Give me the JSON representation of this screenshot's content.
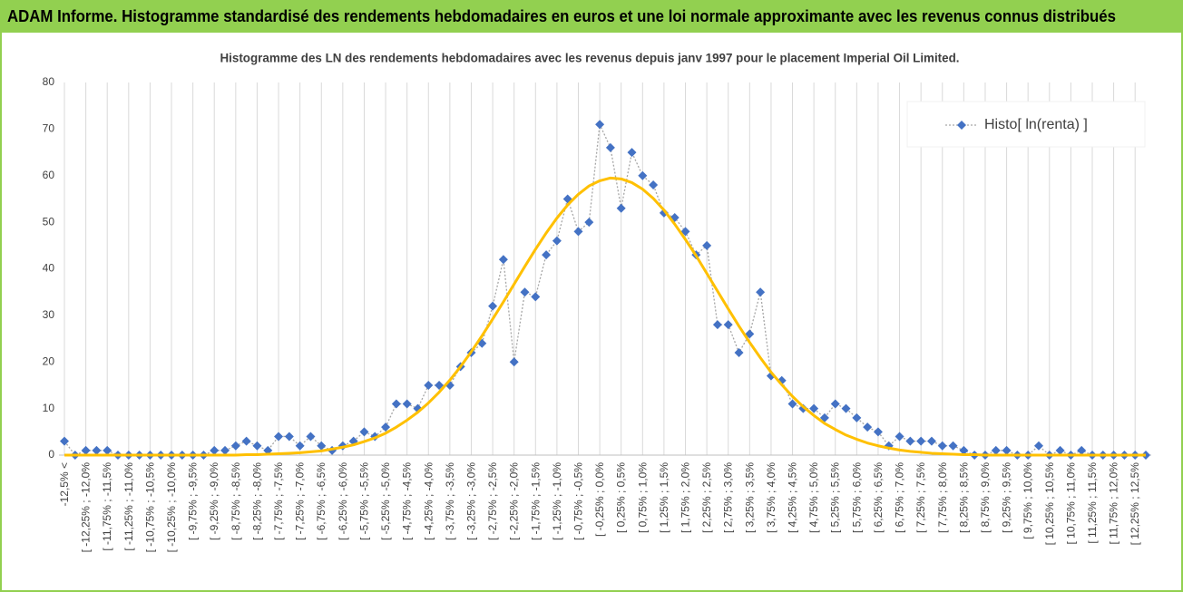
{
  "header": {
    "title": "ADAM Informe. Histogramme standardisé des rendements hebdomadaires en euros et une loi normale approximante avec les revenus connus distribués"
  },
  "chart_data": {
    "type": "line",
    "title": "Histogramme des LN des rendements hebdomadaires avec les revenus depuis janv 1997 pour le placement Imperial Oil Limited.",
    "categories": [
      "-12,5% <",
      null,
      "[ -12,25% ; -12,0%",
      null,
      "[ -11,75% ; -11,5%",
      null,
      "[ -11,25% ; -11,0%",
      null,
      "[ -10,75% ; -10,5%",
      null,
      "[ -10,25% ; -10,0%",
      null,
      "[ -9,75% ; -9,5%",
      null,
      "[ -9,25% ; -9,0%",
      null,
      "[ -8,75% ; -8,5%",
      null,
      "[ -8,25% ; -8,0%",
      null,
      "[ -7,75% ; -7,5%",
      null,
      "[ -7,25% ; -7,0%",
      null,
      "[ -6,75% ; -6,5%",
      null,
      "[ -6,25% ; -6,0%",
      null,
      "[ -5,75% ; -5,5%",
      null,
      "[ -5,25% ; -5,0%",
      null,
      "[ -4,75% ; -4,5%",
      null,
      "[ -4,25% ; -4,0%",
      null,
      "[ -3,75% ; -3,5%",
      null,
      "[ -3,25% ; -3,0%",
      null,
      "[ -2,75% ; -2,5%",
      null,
      "[ -2,25% ; -2,0%",
      null,
      "[ -1,75% ; -1,5%",
      null,
      "[ -1,25% ; -1,0%",
      null,
      "[ -0,75% ; -0,5%",
      null,
      "[ -0,25% ; 0,0%",
      null,
      "[ 0,25% ; 0,5%",
      null,
      "[ 0,75% ; 1,0%",
      null,
      "[ 1,25% ; 1,5%",
      null,
      "[ 1,75% ; 2,0%",
      null,
      "[ 2,25% ; 2,5%",
      null,
      "[ 2,75% ; 3,0%",
      null,
      "[ 3,25% ; 3,5%",
      null,
      "[ 3,75% ; 4,0%",
      null,
      "[ 4,25% ; 4,5%",
      null,
      "[ 4,75% ; 5,0%",
      null,
      "[ 5,25% ; 5,5%",
      null,
      "[ 5,75% ; 6,0%",
      null,
      "[ 6,25% ; 6,5%",
      null,
      "[ 6,75% ; 7,0%",
      null,
      "[ 7,25% ; 7,5%",
      null,
      "[ 7,75% ; 8,0%",
      null,
      "[ 8,25% ; 8,5%",
      null,
      "[ 8,75% ; 9,0%",
      null,
      "[ 9,25% ; 9,5%",
      null,
      "[ 9,75% ; 10,0%",
      null,
      "[ 10,25% ; 10,5%",
      null,
      "[ 10,75% ; 11,0%",
      null,
      "[ 11,25% ; 11,5%",
      null,
      "[ 11,75% ; 12,0%",
      null,
      "[ 12,25% ; 12,5%",
      null
    ],
    "series": [
      {
        "name": "Histo[ ln(renta) ]",
        "color": "#4472c4",
        "values": [
          3,
          0,
          1,
          1,
          1,
          0,
          0,
          0,
          0,
          0,
          0,
          0,
          0,
          0,
          1,
          1,
          2,
          3,
          2,
          1,
          4,
          4,
          2,
          4,
          2,
          1,
          2,
          3,
          5,
          4,
          6,
          11,
          11,
          10,
          15,
          15,
          15,
          19,
          22,
          24,
          32,
          42,
          20,
          35,
          34,
          43,
          46,
          55,
          48,
          50,
          71,
          66,
          53,
          65,
          60,
          58,
          52,
          51,
          48,
          43,
          45,
          28,
          28,
          22,
          26,
          35,
          17,
          16,
          11,
          10,
          10,
          8,
          11,
          10,
          8,
          6,
          5,
          2,
          4,
          3,
          3,
          3,
          2,
          2,
          1,
          0,
          0,
          1,
          1,
          0,
          0,
          2,
          0,
          1,
          0,
          1,
          0,
          0,
          0,
          0,
          0,
          0
        ]
      },
      {
        "color": "#ffc000",
        "values": [
          0,
          0,
          0,
          0,
          0,
          0,
          0,
          0,
          0,
          0,
          0,
          0,
          0,
          0,
          0,
          0,
          0,
          0.1,
          0.1,
          0.2,
          0.3,
          0.4,
          0.5,
          0.7,
          0.9,
          1.3,
          1.7,
          2.2,
          2.9,
          3.7,
          4.7,
          6.0,
          7.5,
          9.2,
          11.2,
          13.5,
          16.1,
          19.0,
          22.2,
          25.6,
          29.2,
          32.9,
          36.7,
          40.5,
          44.2,
          47.7,
          50.9,
          53.7,
          56.0,
          57.8,
          58.9,
          59.5,
          59.3,
          58.5,
          57.1,
          55.1,
          52.6,
          49.6,
          46.3,
          42.8,
          39.0,
          35.2,
          31.4,
          27.7,
          24.2,
          20.9,
          17.8,
          15.1,
          12.6,
          10.4,
          8.5,
          6.8,
          5.5,
          4.3,
          3.4,
          2.6,
          2.0,
          1.5,
          1.1,
          0.8,
          0.6,
          0.4,
          0.3,
          0.2,
          0.1,
          0.1,
          0,
          0,
          0,
          0,
          0,
          0,
          0,
          0,
          0,
          0,
          0,
          0,
          0,
          0,
          0,
          0
        ]
      }
    ],
    "ylim": [
      0,
      80
    ],
    "yticks": [
      0,
      10,
      20,
      30,
      40,
      50,
      60,
      70,
      80
    ],
    "grid": true,
    "legend": "top-right"
  }
}
